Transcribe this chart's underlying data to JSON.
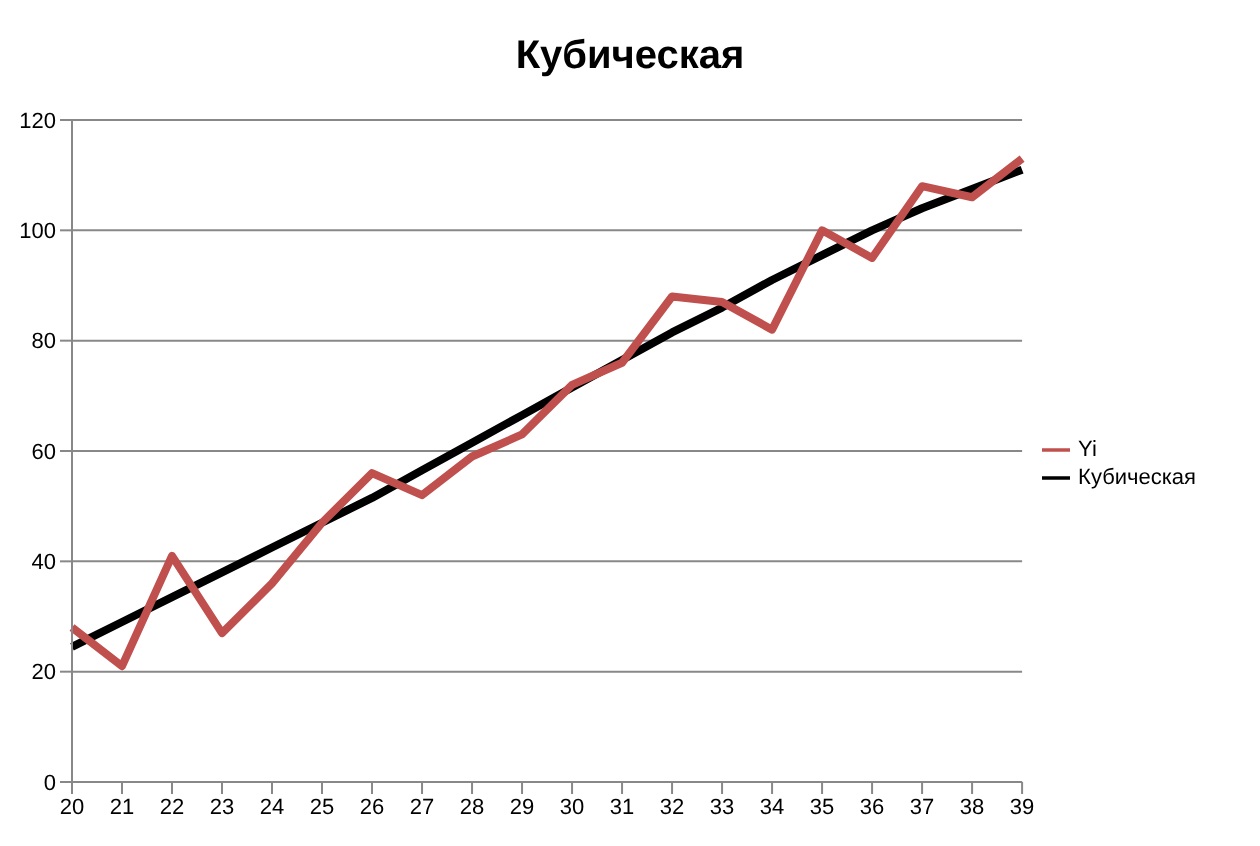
{
  "chart_data": {
    "type": "line",
    "title": "Кубическая",
    "categories": [
      "20",
      "21",
      "22",
      "23",
      "24",
      "25",
      "26",
      "27",
      "28",
      "29",
      "30",
      "31",
      "32",
      "33",
      "34",
      "35",
      "36",
      "37",
      "38",
      "39"
    ],
    "series": [
      {
        "name": "Кубическая",
        "color": "#000000",
        "values": [
          24.5,
          29,
          33.5,
          38,
          42.5,
          47,
          51.5,
          56.5,
          61.5,
          66.5,
          71.5,
          76.5,
          81.5,
          86,
          91,
          95.5,
          100,
          104,
          107.5,
          111
        ]
      },
      {
        "name": "Yi",
        "color": "#c0504d",
        "values": [
          28,
          21,
          41,
          27,
          36,
          47,
          56,
          52,
          59,
          63,
          72,
          76,
          88,
          87,
          82,
          100,
          95,
          108,
          106,
          113
        ]
      }
    ],
    "ylim": [
      0,
      120
    ],
    "yticks": [
      0,
      20,
      40,
      60,
      80,
      100,
      120
    ],
    "grid": "y",
    "legend": "right",
    "marker": "none",
    "line_style": "solid"
  }
}
